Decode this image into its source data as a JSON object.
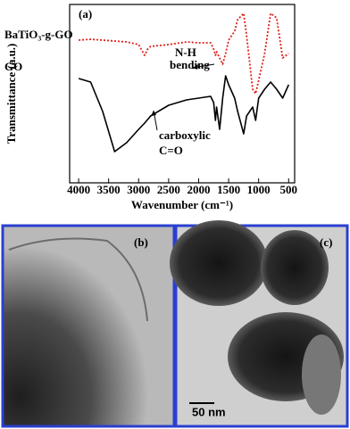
{
  "chart_data": {
    "type": "line",
    "panel_label": "(a)",
    "x_label": "Wavenumber (cm⁻¹)",
    "y_label": "Transmittance (a.u.)",
    "x": [
      4000,
      3800,
      3600,
      3400,
      3200,
      3000,
      2900,
      2850,
      2800,
      2500,
      2200,
      2000,
      1800,
      1750,
      1720,
      1700,
      1650,
      1600,
      1550,
      1500,
      1400,
      1350,
      1250,
      1200,
      1100,
      1050,
      1000,
      900,
      800,
      700,
      600,
      500
    ],
    "series": [
      {
        "name": "BaTiO₃-g-GO",
        "color": "#e0201b",
        "dash": "dotted",
        "values": [
          80,
          80.5,
          80,
          79.5,
          79,
          77.5,
          71.5,
          75,
          76.5,
          77.5,
          79,
          78.5,
          78.5,
          75,
          71.5,
          73.5,
          70,
          66.5,
          72.5,
          80,
          85,
          91.5,
          95,
          82.5,
          52.5,
          50,
          57.5,
          72.5,
          95,
          92.5,
          70,
          72.5
        ]
      },
      {
        "name": "GO",
        "color": "#000000",
        "dash": "solid",
        "values": [
          58.5,
          56.5,
          40,
          17.5,
          22.5,
          30,
          33.5,
          35.5,
          37.5,
          43.5,
          46.5,
          47.5,
          48.5,
          45,
          35,
          42.5,
          30,
          47.5,
          60,
          55,
          47.5,
          40,
          27.5,
          37.5,
          42.5,
          35,
          47.5,
          52.5,
          56.5,
          52.5,
          47.5,
          55
        ]
      }
    ],
    "xlim": [
      4150,
      400
    ],
    "ylim": [
      0,
      100
    ],
    "xticks": [
      4000,
      3500,
      3000,
      2500,
      2000,
      1500,
      1000,
      500
    ],
    "annotations": [
      "N-H",
      "bending",
      "carboxylic",
      "C=O"
    ]
  },
  "panels": [
    {
      "label": "(b)"
    },
    {
      "label": "(c)",
      "scale_bar": "50 nm"
    }
  ]
}
